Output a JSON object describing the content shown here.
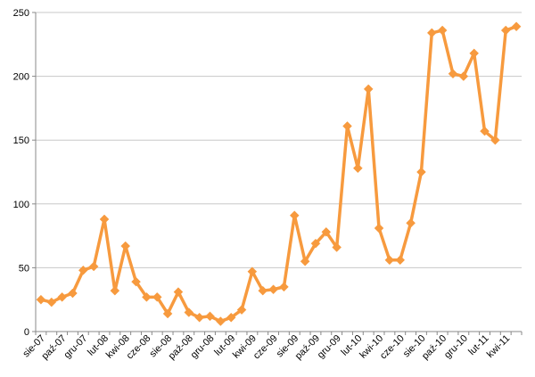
{
  "chart_data": {
    "type": "line",
    "title": "",
    "xlabel": "",
    "ylabel": "",
    "ylim": [
      0,
      250
    ],
    "y_ticks": [
      0,
      50,
      100,
      150,
      200,
      250
    ],
    "grid": true,
    "legend": "none",
    "x_tick_labels": [
      "sie-07",
      "paź-07",
      "gru-07",
      "lut-08",
      "kwi-08",
      "cze-08",
      "sie-08",
      "paź-08",
      "gru-08",
      "lut-09",
      "kwi-09",
      "cze-09",
      "sie-09",
      "paź-09",
      "gru-09",
      "lut-10",
      "kwi-10",
      "cze-10",
      "sie-10",
      "paź-10",
      "gru-10",
      "lut-11",
      "kwi-11"
    ],
    "series": [
      {
        "color": "#F79A3E",
        "marker": "diamond",
        "values": [
          25,
          23,
          27,
          30,
          48,
          51,
          88,
          32,
          67,
          39,
          27,
          27,
          14,
          31,
          15,
          11,
          12,
          8,
          11,
          17,
          47,
          32,
          33,
          35,
          91,
          55,
          69,
          78,
          66,
          161,
          128,
          190,
          81,
          56,
          56,
          85,
          125,
          234,
          236,
          202,
          200,
          218,
          157,
          150,
          236,
          239
        ]
      }
    ]
  }
}
